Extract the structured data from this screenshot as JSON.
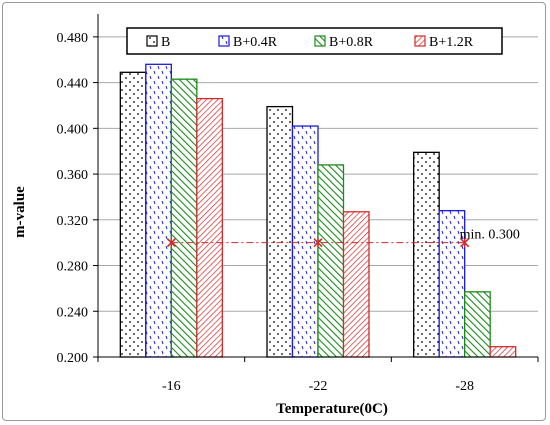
{
  "chart_data": {
    "type": "bar",
    "title": "",
    "xlabel": "Temperature",
    "xlabel_unit": "(0C)",
    "ylabel": "m-value",
    "ylim": [
      0.2,
      0.5
    ],
    "yticks": [
      "0.200",
      "0.240",
      "0.280",
      "0.320",
      "0.360",
      "0.400",
      "0.440",
      "0.480"
    ],
    "categories": [
      "-16",
      "-22",
      "-28"
    ],
    "series": [
      {
        "name": "B",
        "values": [
          0.449,
          0.419,
          0.379
        ],
        "color": "#000000",
        "pattern": "dots"
      },
      {
        "name": "B+0.4R",
        "values": [
          0.456,
          0.402,
          0.328
        ],
        "color": "#1a1adc",
        "pattern": "dashes"
      },
      {
        "name": "B+0.8R",
        "values": [
          0.443,
          0.368,
          0.257
        ],
        "color": "#1b8a1b",
        "pattern": "diagonal"
      },
      {
        "name": "B+1.2R",
        "values": [
          0.426,
          0.327,
          0.209
        ],
        "color": "#d42a2a",
        "pattern": "diagonal-dense"
      }
    ],
    "threshold": {
      "value": 0.3,
      "label": "min. 0.300",
      "color": "#d42a2a"
    },
    "legend_position": "top",
    "grid": "horizontal"
  }
}
